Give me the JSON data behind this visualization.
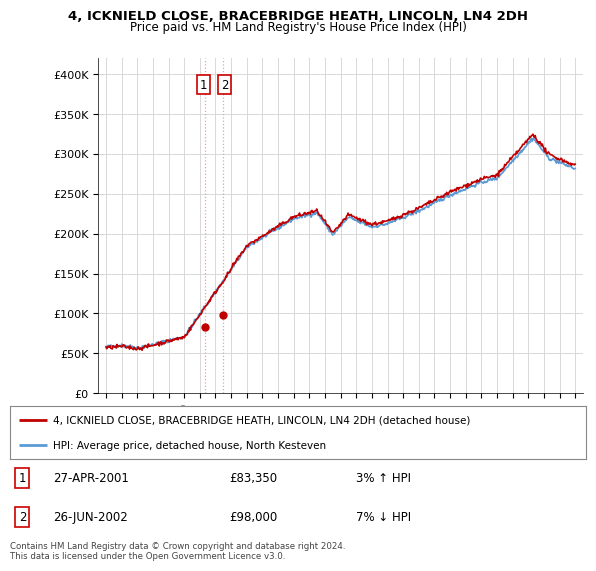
{
  "title": "4, ICKNIELD CLOSE, BRACEBRIDGE HEATH, LINCOLN, LN4 2DH",
  "subtitle": "Price paid vs. HM Land Registry's House Price Index (HPI)",
  "legend_line1": "4, ICKNIELD CLOSE, BRACEBRIDGE HEATH, LINCOLN, LN4 2DH (detached house)",
  "legend_line2": "HPI: Average price, detached house, North Kesteven",
  "transaction1_date": "27-APR-2001",
  "transaction1_price": "£83,350",
  "transaction1_hpi": "3% ↑ HPI",
  "transaction2_date": "26-JUN-2002",
  "transaction2_price": "£98,000",
  "transaction2_hpi": "7% ↓ HPI",
  "footer": "Contains HM Land Registry data © Crown copyright and database right 2024.\nThis data is licensed under the Open Government Licence v3.0.",
  "hpi_color": "#5b9bd5",
  "price_color": "#c00000",
  "dashed_line_color": "#e8a0a0",
  "background_color": "#ffffff",
  "grid_color": "#d8d8d8",
  "ylim": [
    0,
    420000
  ],
  "yticks": [
    0,
    50000,
    100000,
    150000,
    200000,
    250000,
    300000,
    350000,
    400000
  ],
  "start_year": 1995,
  "end_year": 2025,
  "transaction1_year": 2001.32,
  "transaction2_year": 2002.48,
  "transaction1_value": 83350,
  "transaction2_value": 98000
}
